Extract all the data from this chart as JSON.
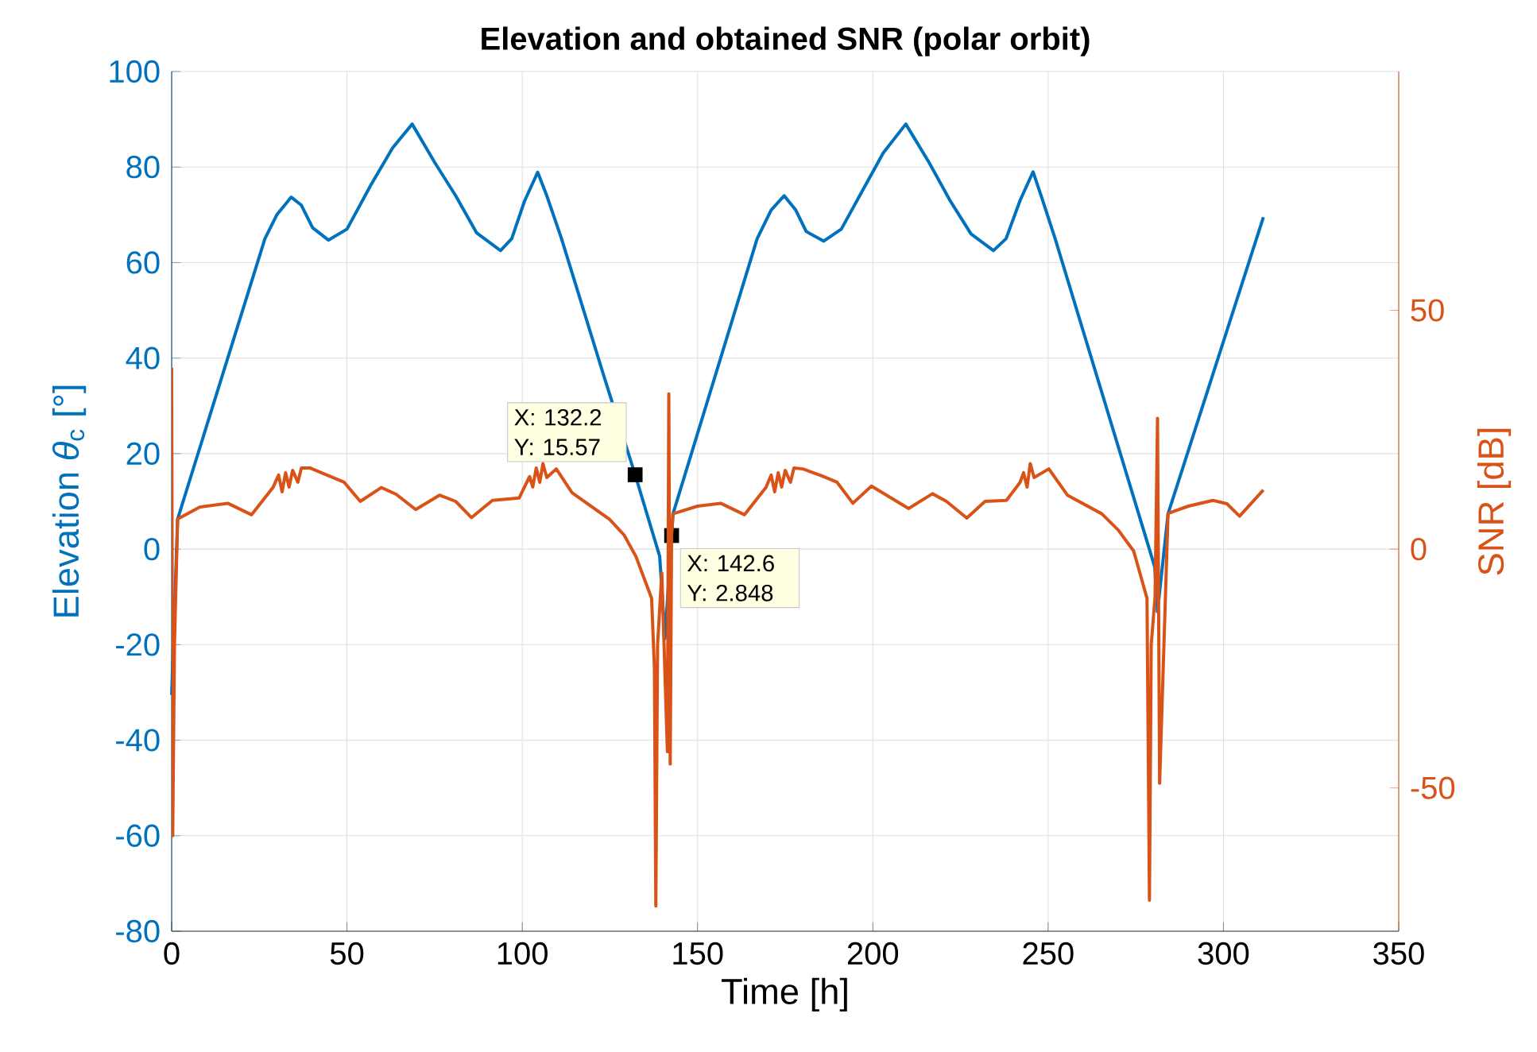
{
  "chart_data": {
    "type": "line",
    "title": "Elevation and obtained SNR (polar orbit)",
    "xlabel": "Time [h]",
    "ylabel": "Elevation *θ*$_{c}$ [°]",
    "y2label": "SNR [dB]",
    "xlim": [
      0,
      350
    ],
    "xticks": [
      0,
      50,
      100,
      150,
      200,
      250,
      300,
      350
    ],
    "ylim": [
      -80,
      100
    ],
    "yticks": [
      -80,
      -60,
      -40,
      -20,
      0,
      20,
      40,
      60,
      80,
      100
    ],
    "y2lim": [
      -80,
      100
    ],
    "y2ticks": [
      -50,
      0,
      50
    ],
    "grid": true,
    "line_style": "solid",
    "series": [
      {
        "color": "#0072bd",
        "x": [
          0,
          1.7,
          26.6,
          30,
          34.1,
          37,
          40.2,
          44.7,
          50,
          56.8,
          63,
          68.6,
          75,
          81,
          87,
          93.8,
          97,
          100.6,
          104.4,
          107,
          111.2,
          123.3,
          132.2,
          139.2,
          140.7,
          143,
          167,
          171,
          174.7,
          178,
          181,
          186,
          191,
          197,
          203,
          209.4,
          216,
          222,
          228,
          234.4,
          238,
          242,
          245.7,
          248,
          252,
          280.4,
          281.2,
          284.2,
          311.4
        ],
        "values": [
          -30.5,
          6.3,
          65,
          70,
          73.7,
          72,
          67.3,
          64.7,
          67,
          76.2,
          84,
          89,
          81,
          74,
          66.2,
          62.5,
          65,
          72.8,
          78.9,
          74,
          65,
          36.2,
          15.57,
          -1.5,
          -18.7,
          7.4,
          65,
          71,
          74,
          71,
          66.5,
          64.5,
          67,
          75,
          83,
          89,
          81,
          73,
          66,
          62.5,
          65,
          73,
          79,
          74,
          65,
          -3.7,
          -13.1,
          7.4,
          69.5
        ]
      },
      {
        "color": "#d95319",
        "axis": "y2",
        "x": [
          0,
          0.3,
          0.8,
          1.7,
          8,
          16,
          22.8,
          28.9,
          30.5,
          31.5,
          32.5,
          33.5,
          34.5,
          36,
          37,
          39.4,
          44.7,
          49.2,
          53.8,
          59.8,
          64,
          69.6,
          76.4,
          81,
          85.5,
          91.5,
          99.1,
          102.1,
          103,
          104,
          105,
          105.9,
          107,
          109.7,
          114.2,
          124.8,
          129,
          132.4,
          136.9,
          137.7,
          138.1,
          138.6,
          139.8,
          141.4,
          141.8,
          142.2,
          142.6,
          143,
          150,
          156.6,
          163.4,
          169.5,
          171,
          172,
          173,
          174,
          175,
          176.5,
          177.5,
          180,
          185.3,
          189.8,
          194.3,
          199.6,
          210.2,
          217,
          221,
          226.8,
          232,
          238.1,
          242,
          243,
          244,
          244.9,
          246,
          250.2,
          255.5,
          265.3,
          270,
          274.4,
          278.2,
          278.9,
          279.4,
          280.5,
          281.2,
          281.8,
          284.2,
          290,
          297,
          301,
          304.6,
          311.4
        ],
        "values": [
          38,
          -60,
          -20,
          6.3,
          8.8,
          9.6,
          7.2,
          12.9,
          15.5,
          12,
          16,
          13,
          16.5,
          14,
          17,
          17,
          15.4,
          14,
          10,
          12.9,
          11.5,
          8.3,
          11.3,
          10,
          6.6,
          10.2,
          10.7,
          15.2,
          13,
          17,
          14,
          17.9,
          15,
          16.8,
          11.8,
          6.3,
          3,
          -1.5,
          -10.3,
          -25,
          -74.7,
          -20,
          -5,
          -42.4,
          32.5,
          -45,
          2.848,
          7.4,
          9,
          9.6,
          7.2,
          12.9,
          15.5,
          12,
          16,
          13,
          16.5,
          14,
          17,
          16.8,
          15.4,
          14,
          9.6,
          13.2,
          8.5,
          11.6,
          10,
          6.5,
          10,
          10.2,
          14,
          16,
          13,
          17.9,
          15,
          16.8,
          11.3,
          7.4,
          4,
          -0.4,
          -10.3,
          -73.5,
          -20,
          -10,
          27.4,
          -49,
          7.5,
          9,
          10.2,
          9.5,
          6.9,
          12.4
        ]
      }
    ],
    "annotations": [
      {
        "text": "X: 132.2 Y: 15.57",
        "x": 132.2,
        "y": 15.57
      },
      {
        "text": "X: 142.6 Y: 2.848",
        "x": 142.6,
        "y": 2.848
      }
    ]
  }
}
